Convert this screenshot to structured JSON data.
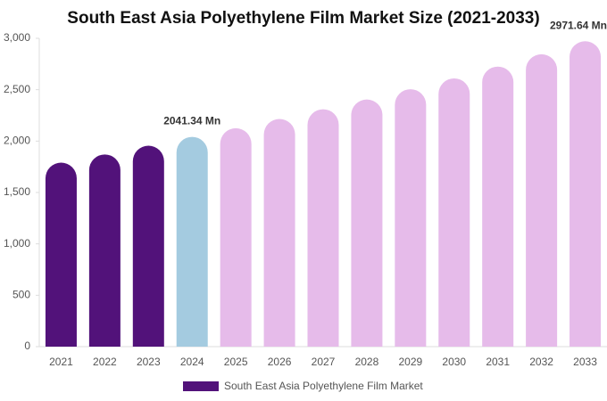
{
  "chart_data": {
    "type": "bar",
    "title": "South East Asia Polyethylene Film Market Size (2021-2033)",
    "categories": [
      "2021",
      "2022",
      "2023",
      "2024",
      "2025",
      "2026",
      "2027",
      "2028",
      "2029",
      "2030",
      "2031",
      "2032",
      "2033"
    ],
    "series": [
      {
        "name": "South East Asia Polyethylene Film Market",
        "color": "#52127a",
        "colors": [
          "#52127a",
          "#52127a",
          "#52127a",
          "#a4cbe0",
          "#e6bbea",
          "#e6bbea",
          "#e6bbea",
          "#e6bbea",
          "#e6bbea",
          "#e6bbea",
          "#e6bbea",
          "#e6bbea",
          "#e6bbea"
        ],
        "values": [
          1790,
          1870,
          1955,
          2041.34,
          2125,
          2215,
          2310,
          2405,
          2505,
          2610,
          2725,
          2845,
          2971.64
        ],
        "value_labels": [
          null,
          null,
          null,
          "2041.34 Mn",
          null,
          null,
          null,
          null,
          null,
          null,
          null,
          null,
          "2971.64 Mn"
        ]
      }
    ],
    "ylim": [
      0,
      3000
    ],
    "yticks": [
      0,
      500,
      {
        "value": 1000,
        "label": "1,000"
      },
      {
        "value": 1500,
        "label": "1,500"
      },
      {
        "value": 2000,
        "label": "2,000"
      },
      {
        "value": 2500,
        "label": "2,500"
      },
      {
        "value": 3000,
        "label": "3,000"
      }
    ],
    "grid": false
  }
}
